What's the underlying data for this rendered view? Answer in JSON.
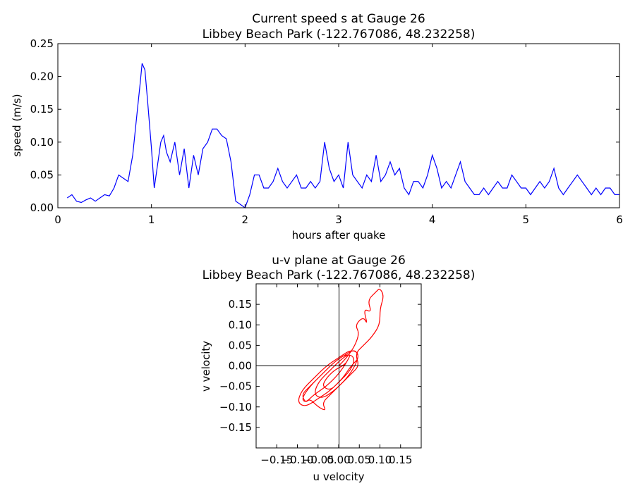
{
  "chart_data": [
    {
      "type": "line",
      "title_line1": "Current speed s at Gauge 26",
      "title_line2": "Libbey Beach Park  (-122.767086, 48.232258)",
      "xlabel": "hours after quake",
      "ylabel": "speed (m/s)",
      "xlim": [
        0,
        6
      ],
      "ylim": [
        0,
        0.25
      ],
      "xticks": [
        0,
        1,
        2,
        3,
        4,
        5,
        6
      ],
      "xtick_labels": [
        "0",
        "1",
        "2",
        "3",
        "4",
        "5",
        "6"
      ],
      "yticks": [
        0.0,
        0.05,
        0.1,
        0.15,
        0.2,
        0.25
      ],
      "ytick_labels": [
        "0.00",
        "0.05",
        "0.10",
        "0.15",
        "0.20",
        "0.25"
      ],
      "grid": false,
      "series": [
        {
          "color": "#0000ff",
          "x": [
            0.1,
            0.15,
            0.2,
            0.25,
            0.3,
            0.35,
            0.4,
            0.45,
            0.5,
            0.55,
            0.6,
            0.65,
            0.7,
            0.75,
            0.8,
            0.85,
            0.88,
            0.9,
            0.93,
            0.96,
            1.0,
            1.03,
            1.06,
            1.1,
            1.13,
            1.16,
            1.2,
            1.25,
            1.3,
            1.35,
            1.4,
            1.45,
            1.5,
            1.55,
            1.6,
            1.65,
            1.7,
            1.75,
            1.8,
            1.85,
            1.9,
            1.95,
            2.0,
            2.05,
            2.1,
            2.15,
            2.2,
            2.25,
            2.3,
            2.35,
            2.4,
            2.45,
            2.5,
            2.55,
            2.6,
            2.65,
            2.7,
            2.75,
            2.8,
            2.85,
            2.9,
            2.95,
            3.0,
            3.05,
            3.1,
            3.15,
            3.2,
            3.25,
            3.3,
            3.35,
            3.4,
            3.45,
            3.5,
            3.55,
            3.6,
            3.65,
            3.7,
            3.75,
            3.8,
            3.85,
            3.9,
            3.95,
            4.0,
            4.05,
            4.1,
            4.15,
            4.2,
            4.25,
            4.3,
            4.35,
            4.4,
            4.45,
            4.5,
            4.55,
            4.6,
            4.65,
            4.7,
            4.75,
            4.8,
            4.85,
            4.9,
            4.95,
            5.0,
            5.05,
            5.1,
            5.15,
            5.2,
            5.25,
            5.3,
            5.35,
            5.4,
            5.45,
            5.5,
            5.55,
            5.6,
            5.65,
            5.7,
            5.75,
            5.8,
            5.85,
            5.9,
            5.95,
            6.0
          ],
          "y": [
            0.015,
            0.02,
            0.01,
            0.008,
            0.012,
            0.015,
            0.01,
            0.015,
            0.02,
            0.018,
            0.03,
            0.05,
            0.045,
            0.04,
            0.08,
            0.15,
            0.19,
            0.22,
            0.21,
            0.16,
            0.09,
            0.03,
            0.06,
            0.1,
            0.11,
            0.085,
            0.07,
            0.1,
            0.05,
            0.09,
            0.03,
            0.08,
            0.05,
            0.09,
            0.1,
            0.12,
            0.12,
            0.11,
            0.105,
            0.07,
            0.01,
            0.005,
            0.0,
            0.02,
            0.05,
            0.05,
            0.03,
            0.03,
            0.04,
            0.06,
            0.04,
            0.03,
            0.04,
            0.05,
            0.03,
            0.03,
            0.04,
            0.03,
            0.04,
            0.1,
            0.06,
            0.04,
            0.05,
            0.03,
            0.1,
            0.05,
            0.04,
            0.03,
            0.05,
            0.04,
            0.08,
            0.04,
            0.05,
            0.07,
            0.05,
            0.06,
            0.03,
            0.02,
            0.04,
            0.04,
            0.03,
            0.05,
            0.08,
            0.06,
            0.03,
            0.04,
            0.03,
            0.05,
            0.07,
            0.04,
            0.03,
            0.02,
            0.02,
            0.03,
            0.02,
            0.03,
            0.04,
            0.03,
            0.03,
            0.05,
            0.04,
            0.03,
            0.03,
            0.02,
            0.03,
            0.04,
            0.03,
            0.04,
            0.06,
            0.03,
            0.02,
            0.03,
            0.04,
            0.05,
            0.04,
            0.03,
            0.02,
            0.03,
            0.02,
            0.03,
            0.03,
            0.02,
            0.02
          ]
        }
      ]
    },
    {
      "type": "line",
      "title_line1": "u-v plane at Gauge 26",
      "title_line2": "Libbey Beach Park  (-122.767086, 48.232258)",
      "xlabel": "u velocity",
      "ylabel": "v velocity",
      "xlim": [
        -0.2,
        0.2
      ],
      "ylim": [
        -0.2,
        0.2
      ],
      "xticks": [
        -0.15,
        -0.1,
        -0.05,
        0.0,
        0.05,
        0.1,
        0.15
      ],
      "xtick_labels": [
        "−0.15",
        "−0.10",
        "−0.05",
        "0.00",
        "0.05",
        "0.10",
        "0.15"
      ],
      "yticks": [
        -0.15,
        -0.1,
        -0.05,
        0.0,
        0.05,
        0.1,
        0.15
      ],
      "ytick_labels": [
        "−0.15",
        "−0.10",
        "−0.05",
        "0.00",
        "0.05",
        "0.10",
        "0.15"
      ],
      "grid": false,
      "zero_lines": true,
      "series": [
        {
          "color": "#ff0000",
          "u": [
            0.0,
            0.02,
            0.04,
            0.05,
            0.04,
            0.06,
            0.07,
            0.06,
            0.08,
            0.07,
            0.09,
            0.1,
            0.11,
            0.1,
            0.1,
            0.08,
            0.06,
            0.04,
            0.05,
            0.03,
            0.0,
            -0.02,
            -0.04,
            -0.03,
            -0.05,
            -0.07,
            -0.08,
            -0.09,
            -0.07,
            -0.04,
            -0.01,
            0.02,
            0.04,
            0.05,
            0.03,
            0.01,
            -0.02,
            -0.05,
            -0.08,
            -0.1,
            -0.09,
            -0.06,
            -0.03,
            0.0,
            0.03,
            0.05,
            0.04,
            0.02,
            -0.01,
            -0.04,
            -0.06,
            -0.05,
            -0.02,
            0.01,
            0.03,
            0.02,
            0.0,
            -0.03,
            -0.06,
            -0.08,
            -0.09,
            -0.07,
            -0.04,
            -0.01,
            0.02,
            0.04,
            0.03,
            0.0,
            -0.02,
            -0.04,
            -0.03,
            -0.01,
            0.01,
            0.02,
            0.01,
            0.0
          ],
          "v": [
            0.0,
            0.02,
            0.05,
            0.08,
            0.1,
            0.12,
            0.1,
            0.14,
            0.13,
            0.16,
            0.18,
            0.19,
            0.17,
            0.14,
            0.1,
            0.07,
            0.05,
            0.03,
            0.0,
            -0.02,
            -0.05,
            -0.07,
            -0.09,
            -0.11,
            -0.1,
            -0.08,
            -0.09,
            -0.07,
            -0.05,
            -0.02,
            0.01,
            0.03,
            0.04,
            0.02,
            0.0,
            -0.03,
            -0.06,
            -0.08,
            -0.1,
            -0.09,
            -0.06,
            -0.03,
            0.0,
            0.02,
            0.04,
            0.03,
            0.0,
            -0.03,
            -0.06,
            -0.08,
            -0.07,
            -0.04,
            -0.01,
            0.02,
            0.03,
            0.01,
            -0.02,
            -0.05,
            -0.07,
            -0.09,
            -0.08,
            -0.05,
            -0.02,
            0.01,
            0.03,
            0.02,
            -0.01,
            -0.04,
            -0.06,
            -0.05,
            -0.03,
            -0.01,
            0.0,
            0.01,
            0.0,
            0.0
          ]
        }
      ]
    }
  ]
}
